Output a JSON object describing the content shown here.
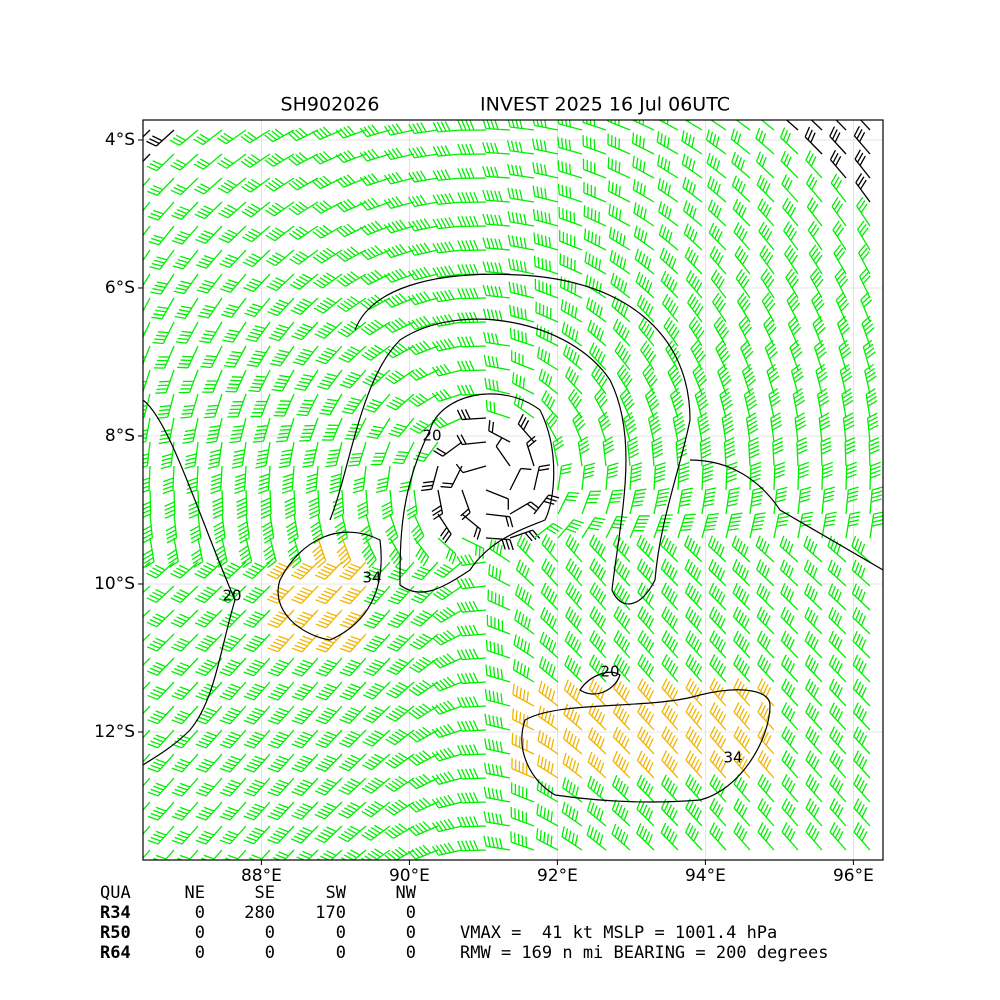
{
  "title": {
    "left": "SH902026",
    "right": "INVEST 2025 16 Jul 06UTC"
  },
  "map": {
    "xlim": [
      86.4,
      96.4
    ],
    "ylim": [
      -13.73,
      -3.73
    ],
    "xticks": [
      {
        "value": 88,
        "label": "88°E"
      },
      {
        "value": 90,
        "label": "90°E"
      },
      {
        "value": 92,
        "label": "92°E"
      },
      {
        "value": 94,
        "label": "94°E"
      },
      {
        "value": 96,
        "label": "96°E"
      }
    ],
    "yticks": [
      {
        "value": -4,
        "label": "4°S"
      },
      {
        "value": -6,
        "label": "6°S"
      },
      {
        "value": -8,
        "label": "8°S"
      },
      {
        "value": -10,
        "label": "10°S"
      },
      {
        "value": -12,
        "label": "12°S"
      }
    ],
    "contour_labels": [
      "20",
      "34",
      "20",
      "20",
      "34"
    ]
  },
  "table": {
    "header": [
      "QUA",
      "NE",
      "SE",
      "SW",
      "NW"
    ],
    "rows": [
      [
        "R34",
        "0",
        "280",
        "170",
        "0"
      ],
      [
        "R50",
        "0",
        "0",
        "0",
        "0"
      ],
      [
        "R64",
        "0",
        "0",
        "0",
        "0"
      ]
    ]
  },
  "stats": [
    "VMAX =  41 kt MSLP = 1001.4 hPa",
    "RMW = 169 n mi BEARING = 200 degrees"
  ]
}
